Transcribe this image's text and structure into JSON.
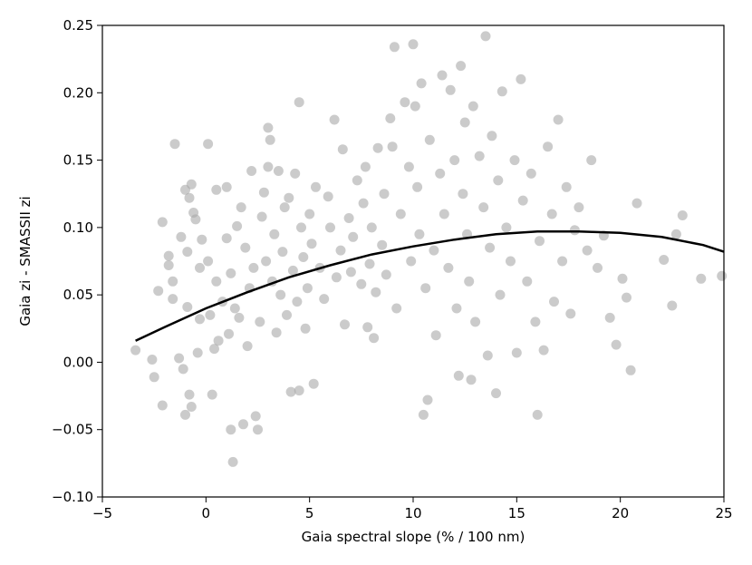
{
  "chart_data": {
    "type": "scatter",
    "title": "",
    "xlabel": "Gaia spectral slope (% / 100 nm)",
    "ylabel": "Gaia zi - SMASSII zi",
    "xlim": [
      -5,
      25
    ],
    "ylim": [
      -0.1,
      0.25
    ],
    "x_ticks": [
      -5,
      0,
      5,
      10,
      15,
      20,
      25
    ],
    "x_tick_labels": [
      "−5",
      "0",
      "5",
      "10",
      "15",
      "20",
      "25"
    ],
    "y_ticks": [
      -0.1,
      -0.05,
      0.0,
      0.05,
      0.1,
      0.15,
      0.2,
      0.25
    ],
    "y_tick_labels": [
      "−0.10",
      "−0.05",
      "0.00",
      "0.05",
      "0.10",
      "0.15",
      "0.20",
      "0.25"
    ],
    "grid": false,
    "colors": {
      "points": "#a9a9a9",
      "fit": "#000000",
      "axes": "#000000"
    },
    "fit_curve": {
      "name": "",
      "x": [
        -3.4,
        -2,
        0,
        2,
        4,
        6,
        8,
        10,
        12,
        14,
        16,
        18,
        20,
        22,
        24,
        25
      ],
      "y": [
        0.016,
        0.026,
        0.04,
        0.052,
        0.063,
        0.072,
        0.08,
        0.086,
        0.091,
        0.095,
        0.097,
        0.097,
        0.096,
        0.093,
        0.087,
        0.082
      ]
    },
    "series": [
      {
        "name": "",
        "points": [
          [
            -3.4,
            0.009
          ],
          [
            -2.6,
            0.002
          ],
          [
            -2.5,
            -0.011
          ],
          [
            -2.3,
            0.053
          ],
          [
            -2.1,
            -0.032
          ],
          [
            -2.1,
            0.104
          ],
          [
            -1.8,
            0.072
          ],
          [
            -1.8,
            0.079
          ],
          [
            -1.6,
            0.06
          ],
          [
            -1.6,
            0.047
          ],
          [
            -1.5,
            0.162
          ],
          [
            -1.3,
            0.003
          ],
          [
            -1.2,
            0.093
          ],
          [
            -1.1,
            -0.005
          ],
          [
            -1.0,
            0.128
          ],
          [
            -1.0,
            -0.039
          ],
          [
            -0.9,
            0.041
          ],
          [
            -0.9,
            0.082
          ],
          [
            -0.8,
            -0.024
          ],
          [
            -0.8,
            0.122
          ],
          [
            -0.7,
            0.132
          ],
          [
            -0.7,
            -0.033
          ],
          [
            -0.6,
            0.111
          ],
          [
            -0.5,
            0.106
          ],
          [
            -0.4,
            0.007
          ],
          [
            -0.3,
            0.07
          ],
          [
            -0.3,
            0.032
          ],
          [
            -0.2,
            0.091
          ],
          [
            0.1,
            0.162
          ],
          [
            0.1,
            0.075
          ],
          [
            0.2,
            0.035
          ],
          [
            0.3,
            -0.024
          ],
          [
            0.4,
            0.01
          ],
          [
            0.5,
            0.06
          ],
          [
            0.5,
            0.128
          ],
          [
            0.6,
            0.016
          ],
          [
            0.8,
            0.045
          ],
          [
            1.0,
            0.13
          ],
          [
            1.0,
            0.092
          ],
          [
            1.1,
            0.021
          ],
          [
            1.2,
            -0.05
          ],
          [
            1.2,
            0.066
          ],
          [
            1.3,
            -0.074
          ],
          [
            1.4,
            0.04
          ],
          [
            1.5,
            0.101
          ],
          [
            1.6,
            0.033
          ],
          [
            1.7,
            0.115
          ],
          [
            1.8,
            -0.046
          ],
          [
            1.9,
            0.085
          ],
          [
            2.0,
            0.012
          ],
          [
            2.1,
            0.055
          ],
          [
            2.2,
            0.142
          ],
          [
            2.3,
            0.07
          ],
          [
            2.4,
            -0.04
          ],
          [
            2.5,
            -0.05
          ],
          [
            2.6,
            0.03
          ],
          [
            2.7,
            0.108
          ],
          [
            2.8,
            0.126
          ],
          [
            2.9,
            0.075
          ],
          [
            3.0,
            0.174
          ],
          [
            3.0,
            0.145
          ],
          [
            3.1,
            0.165
          ],
          [
            3.2,
            0.06
          ],
          [
            3.3,
            0.095
          ],
          [
            3.4,
            0.022
          ],
          [
            3.5,
            0.142
          ],
          [
            3.6,
            0.05
          ],
          [
            3.7,
            0.082
          ],
          [
            3.8,
            0.115
          ],
          [
            3.9,
            0.035
          ],
          [
            4.0,
            0.122
          ],
          [
            4.1,
            -0.022
          ],
          [
            4.2,
            0.068
          ],
          [
            4.3,
            0.14
          ],
          [
            4.4,
            0.045
          ],
          [
            4.5,
            -0.021
          ],
          [
            4.5,
            0.193
          ],
          [
            4.6,
            0.1
          ],
          [
            4.7,
            0.078
          ],
          [
            4.8,
            0.025
          ],
          [
            4.9,
            0.055
          ],
          [
            5.0,
            0.11
          ],
          [
            5.1,
            0.088
          ],
          [
            5.2,
            -0.016
          ],
          [
            5.3,
            0.13
          ],
          [
            5.5,
            0.07
          ],
          [
            5.7,
            0.047
          ],
          [
            5.9,
            0.123
          ],
          [
            6.0,
            0.1
          ],
          [
            6.2,
            0.18
          ],
          [
            6.3,
            0.063
          ],
          [
            6.5,
            0.083
          ],
          [
            6.6,
            0.158
          ],
          [
            6.7,
            0.028
          ],
          [
            6.9,
            0.107
          ],
          [
            7.0,
            0.067
          ],
          [
            7.1,
            0.093
          ],
          [
            7.3,
            0.135
          ],
          [
            7.5,
            0.058
          ],
          [
            7.6,
            0.118
          ],
          [
            7.7,
            0.145
          ],
          [
            7.8,
            0.026
          ],
          [
            7.9,
            0.073
          ],
          [
            8.0,
            0.1
          ],
          [
            8.1,
            0.018
          ],
          [
            8.2,
            0.052
          ],
          [
            8.3,
            0.159
          ],
          [
            8.5,
            0.087
          ],
          [
            8.6,
            0.125
          ],
          [
            8.7,
            0.065
          ],
          [
            8.9,
            0.181
          ],
          [
            9.0,
            0.16
          ],
          [
            9.1,
            0.234
          ],
          [
            9.2,
            0.04
          ],
          [
            9.4,
            0.11
          ],
          [
            9.6,
            0.193
          ],
          [
            9.8,
            0.145
          ],
          [
            9.9,
            0.075
          ],
          [
            10.0,
            0.236
          ],
          [
            10.1,
            0.19
          ],
          [
            10.2,
            0.13
          ],
          [
            10.3,
            0.095
          ],
          [
            10.4,
            0.207
          ],
          [
            10.5,
            -0.039
          ],
          [
            10.6,
            0.055
          ],
          [
            10.7,
            -0.028
          ],
          [
            10.8,
            0.165
          ],
          [
            11.0,
            0.083
          ],
          [
            11.1,
            0.02
          ],
          [
            11.3,
            0.14
          ],
          [
            11.4,
            0.213
          ],
          [
            11.5,
            0.11
          ],
          [
            11.7,
            0.07
          ],
          [
            11.8,
            0.202
          ],
          [
            12.0,
            0.15
          ],
          [
            12.1,
            0.04
          ],
          [
            12.2,
            -0.01
          ],
          [
            12.3,
            0.22
          ],
          [
            12.4,
            0.125
          ],
          [
            12.5,
            0.178
          ],
          [
            12.6,
            0.095
          ],
          [
            12.7,
            0.06
          ],
          [
            12.8,
            -0.013
          ],
          [
            12.9,
            0.19
          ],
          [
            13.0,
            0.03
          ],
          [
            13.2,
            0.153
          ],
          [
            13.4,
            0.115
          ],
          [
            13.5,
            0.242
          ],
          [
            13.6,
            0.005
          ],
          [
            13.7,
            0.085
          ],
          [
            13.8,
            0.168
          ],
          [
            14.0,
            -0.023
          ],
          [
            14.1,
            0.135
          ],
          [
            14.2,
            0.05
          ],
          [
            14.3,
            0.201
          ],
          [
            14.5,
            0.1
          ],
          [
            14.7,
            0.075
          ],
          [
            14.9,
            0.15
          ],
          [
            15.0,
            0.007
          ],
          [
            15.2,
            0.21
          ],
          [
            15.3,
            0.12
          ],
          [
            15.5,
            0.06
          ],
          [
            15.7,
            0.14
          ],
          [
            15.9,
            0.03
          ],
          [
            16.0,
            -0.039
          ],
          [
            16.1,
            0.09
          ],
          [
            16.3,
            0.009
          ],
          [
            16.5,
            0.16
          ],
          [
            16.7,
            0.11
          ],
          [
            16.8,
            0.045
          ],
          [
            17.0,
            0.18
          ],
          [
            17.2,
            0.075
          ],
          [
            17.4,
            0.13
          ],
          [
            17.6,
            0.036
          ],
          [
            17.8,
            0.098
          ],
          [
            18.0,
            0.115
          ],
          [
            18.4,
            0.083
          ],
          [
            18.6,
            0.15
          ],
          [
            18.9,
            0.07
          ],
          [
            19.2,
            0.094
          ],
          [
            19.5,
            0.033
          ],
          [
            19.8,
            0.013
          ],
          [
            20.1,
            0.062
          ],
          [
            20.3,
            0.048
          ],
          [
            20.5,
            -0.006
          ],
          [
            20.8,
            0.118
          ],
          [
            22.1,
            0.076
          ],
          [
            22.5,
            0.042
          ],
          [
            22.7,
            0.095
          ],
          [
            23.0,
            0.109
          ],
          [
            23.9,
            0.062
          ],
          [
            24.9,
            0.064
          ]
        ]
      }
    ]
  }
}
